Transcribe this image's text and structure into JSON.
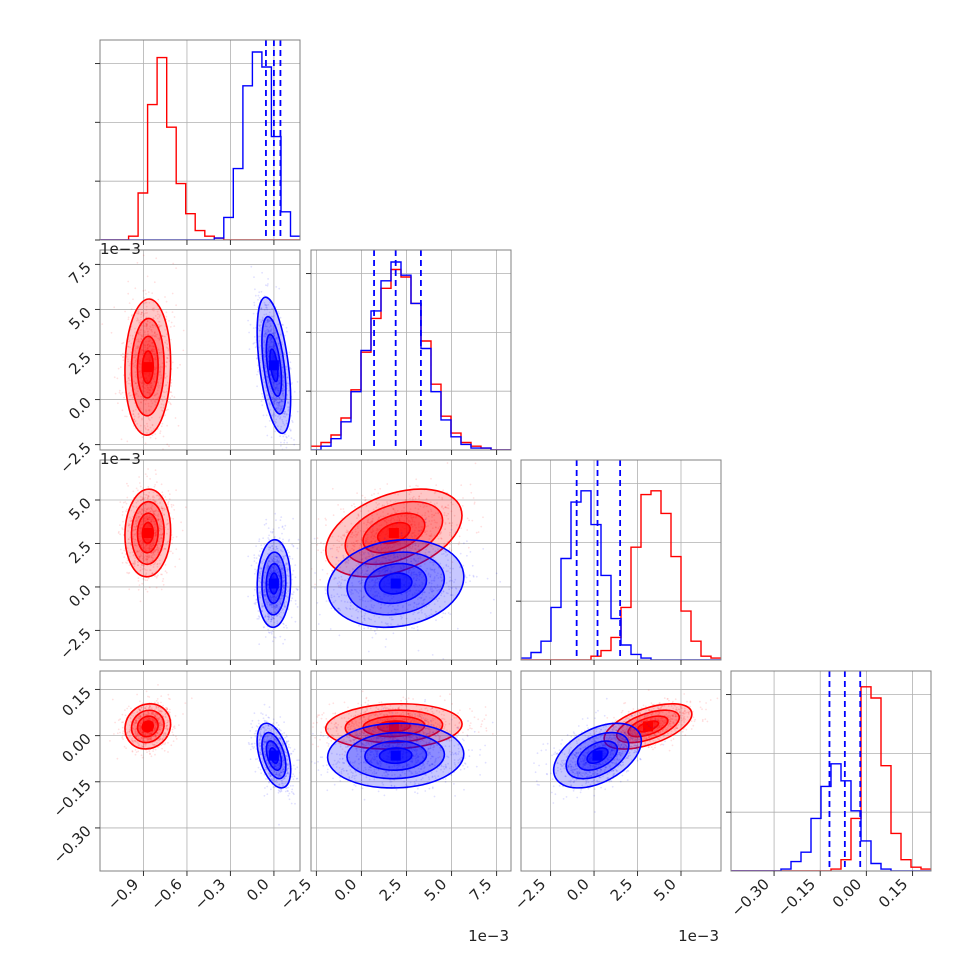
{
  "chart_data": {
    "type": "corner",
    "n_params": 4,
    "colors": {
      "series_a": "#ff0000",
      "series_b": "#0000ff",
      "grid": "#b0b0b0",
      "frame": "#808080"
    },
    "grid": true,
    "params": [
      {
        "range": [
          -1.2,
          0.18
        ],
        "ticks": [
          -0.9,
          -0.6,
          -0.3,
          0.0
        ],
        "tick_labels": [
          "−0.9",
          "−0.6",
          "−0.3",
          "0.0"
        ],
        "offset_text": ""
      },
      {
        "range": [
          -0.0028,
          0.0083
        ],
        "ticks": [
          -0.0025,
          0.0,
          0.0025,
          0.005,
          0.0075
        ],
        "tick_labels": [
          "−2.5",
          "0.0",
          "2.5",
          "5.0",
          "7.5"
        ],
        "offset_text": "1e−3"
      },
      {
        "range": [
          -0.0042,
          0.0073
        ],
        "ticks": [
          -0.0025,
          0.0,
          0.0025,
          0.005
        ],
        "tick_labels": [
          "−2.5",
          "0.0",
          "2.5",
          "5.0"
        ],
        "offset_text": "1e−3"
      },
      {
        "range": [
          -0.44,
          0.21
        ],
        "ticks": [
          -0.3,
          -0.15,
          0.0,
          0.15
        ],
        "tick_labels": [
          "−0.30",
          "−0.15",
          "0.00",
          "0.15"
        ],
        "offset_text": ""
      }
    ],
    "series": [
      {
        "color": "#ff0000",
        "means": [
          -0.87,
          0.0018,
          0.0031,
          0.03
        ],
        "stds": [
          0.075,
          0.0018,
          0.0012,
          0.035
        ],
        "correlations": {
          "0-1": 0.05,
          "0-2": 0.05,
          "0-3": 0.1,
          "1-2": 0.4,
          "1-3": 0.1,
          "2-3": 0.55
        }
      },
      {
        "color": "#0000ff",
        "means": [
          0.0,
          0.0019,
          0.0002,
          -0.065
        ],
        "stds": [
          0.055,
          0.0018,
          0.0012,
          0.05
        ],
        "correlations": {
          "0-1": -0.5,
          "0-2": 0.05,
          "0-3": -0.45,
          "1-2": 0.15,
          "1-3": 0.05,
          "2-3": 0.45
        }
      }
    ],
    "quantile_lines": [
      {
        "param": 0,
        "values": [
          -0.055,
          0.0,
          0.045
        ]
      },
      {
        "param": 1,
        "values": [
          0.0007,
          0.0019,
          0.0033
        ]
      },
      {
        "param": 2,
        "values": [
          -0.001,
          0.0002,
          0.0015
        ]
      },
      {
        "param": 3,
        "values": [
          -0.12,
          -0.07,
          -0.02
        ]
      }
    ],
    "hist_counts": [
      {
        "red": [
          0,
          0,
          0,
          0.02,
          0.25,
          0.72,
          0.97,
          0.6,
          0.3,
          0.14,
          0.05,
          0.02,
          0.01,
          0,
          0,
          0,
          0,
          0,
          0,
          0,
          0
        ],
        "blue": [
          0,
          0,
          0,
          0,
          0,
          0,
          0,
          0,
          0,
          0,
          0,
          0,
          0.01,
          0.12,
          0.38,
          0.82,
          1.0,
          0.92,
          0.55,
          0.15,
          0.02
        ]
      },
      {
        "red": [
          0.02,
          0.04,
          0.08,
          0.17,
          0.32,
          0.52,
          0.7,
          0.86,
          0.96,
          0.92,
          0.78,
          0.58,
          0.35,
          0.18,
          0.09,
          0.04,
          0.02,
          0.01,
          0,
          0
        ],
        "blue": [
          0.0,
          0.02,
          0.06,
          0.15,
          0.31,
          0.53,
          0.74,
          0.9,
          1.0,
          0.93,
          0.78,
          0.54,
          0.31,
          0.16,
          0.07,
          0.03,
          0.01,
          0.01,
          0,
          0
        ]
      },
      {
        "red": [
          0,
          0,
          0,
          0,
          0,
          0,
          0,
          0.02,
          0.05,
          0.12,
          0.28,
          0.6,
          0.88,
          0.9,
          0.78,
          0.55,
          0.26,
          0.1,
          0.02,
          0.01
        ],
        "blue": [
          0.01,
          0.04,
          0.1,
          0.28,
          0.54,
          0.84,
          0.9,
          0.72,
          0.45,
          0.22,
          0.08,
          0.03,
          0.01,
          0,
          0,
          0,
          0,
          0,
          0,
          0
        ]
      },
      {
        "red": [
          0,
          0,
          0,
          0,
          0,
          0,
          0,
          0,
          0,
          0,
          0.01,
          0.06,
          0.28,
          0.98,
          0.92,
          0.56,
          0.2,
          0.06,
          0.02,
          0.01
        ],
        "blue": [
          0,
          0,
          0,
          0,
          0,
          0.01,
          0.05,
          0.1,
          0.28,
          0.45,
          0.57,
          0.48,
          0.32,
          0.16,
          0.04,
          0.01,
          0,
          0,
          0,
          0
        ]
      }
    ]
  }
}
